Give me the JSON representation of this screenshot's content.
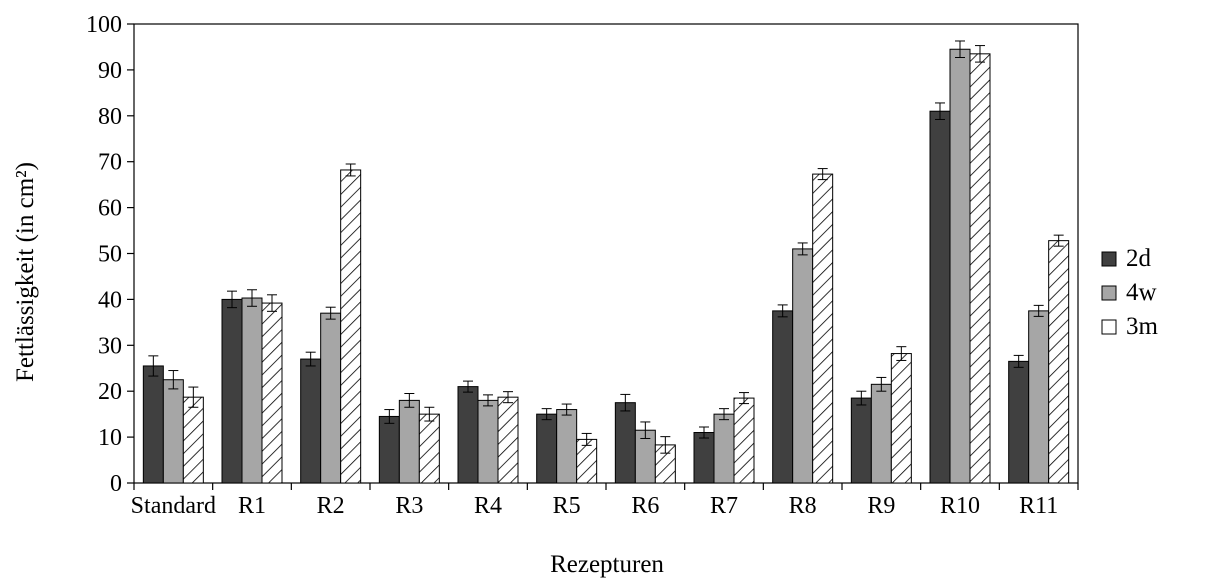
{
  "chart_data": {
    "type": "bar",
    "xlabel": "Rezepturen",
    "ylabel": "Fettlässigkeit (in cm²)",
    "ylim": [
      0,
      100
    ],
    "yticks": [
      "0",
      "10",
      "20",
      "30",
      "40",
      "50",
      "60",
      "70",
      "80",
      "90",
      "100"
    ],
    "categories": [
      "Standard",
      "R1",
      "R2",
      "R3",
      "R4",
      "R5",
      "R6",
      "R7",
      "R8",
      "R9",
      "R10",
      "R11"
    ],
    "series": [
      {
        "name": "2d",
        "fill": "#404040",
        "values": [
          25.5,
          40,
          27,
          14.5,
          21,
          15,
          17.5,
          11,
          37.5,
          18.5,
          81,
          26.5
        ],
        "errors": [
          2.2,
          1.8,
          1.5,
          1.5,
          1.2,
          1.2,
          1.8,
          1.2,
          1.3,
          1.5,
          1.8,
          1.3
        ]
      },
      {
        "name": "4w",
        "fill": "#a6a6a6",
        "values": [
          22.5,
          40.3,
          37,
          18,
          18,
          16,
          11.5,
          15,
          51,
          21.5,
          94.5,
          37.5
        ],
        "errors": [
          2.0,
          1.8,
          1.3,
          1.5,
          1.2,
          1.2,
          1.8,
          1.2,
          1.3,
          1.5,
          1.8,
          1.2
        ]
      },
      {
        "name": "3m",
        "fill": "#ffffff",
        "pattern": "diagonal-hatch",
        "values": [
          18.7,
          39.2,
          68.2,
          15,
          18.7,
          9.5,
          8.3,
          18.5,
          67.3,
          28.2,
          93.5,
          52.8
        ],
        "errors": [
          2.2,
          1.8,
          1.3,
          1.5,
          1.2,
          1.3,
          1.8,
          1.2,
          1.2,
          1.5,
          1.8,
          1.2
        ]
      }
    ],
    "legend_position": "right",
    "grid": false
  }
}
